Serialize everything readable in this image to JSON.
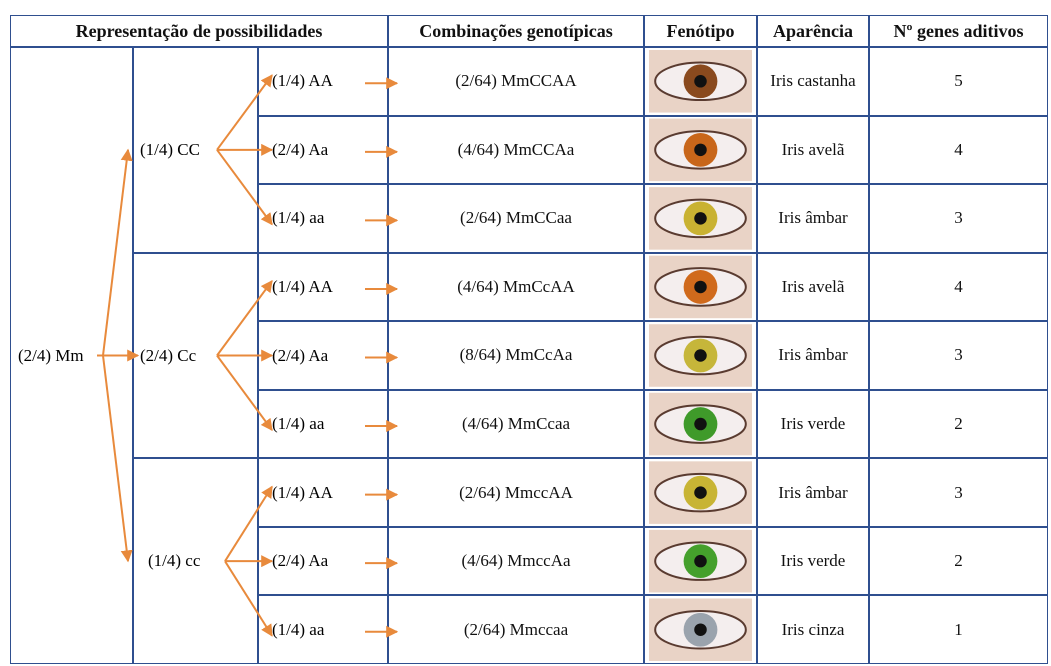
{
  "header": {
    "columns": [
      "Representação de possibilidades",
      "Combinações genotípicas",
      "Fenótipo",
      "Aparência",
      "Nº genes aditivos"
    ]
  },
  "tree": {
    "root": "(2/4) Mm",
    "groups": [
      {
        "label": "(1/4) CC",
        "rows": [
          {
            "allele": "(1/4) AA",
            "combination": "(2/64) MmCCAA",
            "appearance": "Iris castanha",
            "genes": 5
          },
          {
            "allele": "(2/4) Aa",
            "combination": "(4/64) MmCCAa",
            "appearance": "Iris avelã",
            "genes": 4
          },
          {
            "allele": "(1/4) aa",
            "combination": "(2/64) MmCCaa",
            "appearance": "Iris âmbar",
            "genes": 3
          }
        ]
      },
      {
        "label": "(2/4) Cc",
        "rows": [
          {
            "allele": "(1/4) AA",
            "combination": "(4/64) MmCcAA",
            "appearance": "Iris avelã",
            "genes": 4
          },
          {
            "allele": "(2/4) Aa",
            "combination": "(8/64) MmCcAa",
            "appearance": "Iris âmbar",
            "genes": 3
          },
          {
            "allele": "(1/4) aa",
            "combination": "(4/64) MmCcaa",
            "appearance": "Iris verde",
            "genes": 2
          }
        ]
      },
      {
        "label": "(1/4) cc",
        "rows": [
          {
            "allele": "(1/4) AA",
            "combination": "(2/64) MmccAA",
            "appearance": "Iris âmbar",
            "genes": 3
          },
          {
            "allele": "(2/4) Aa",
            "combination": "(4/64) MmccAa",
            "appearance": "Iris verde",
            "genes": 2
          },
          {
            "allele": "(1/4) aa",
            "combination": "(2/64) Mmccaa",
            "appearance": "Iris cinza",
            "genes": 1
          }
        ]
      }
    ]
  }
}
